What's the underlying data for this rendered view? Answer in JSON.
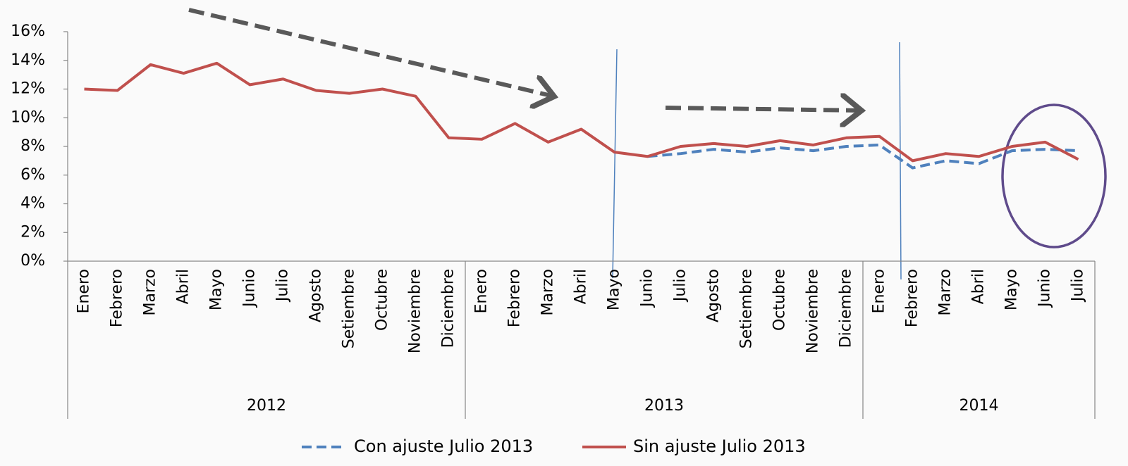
{
  "chart_data": {
    "type": "line",
    "category_groups": [
      {
        "label": "2012",
        "categories": [
          "Enero",
          "Febrero",
          "Marzo",
          "Abril",
          "Mayo",
          "Junio",
          "Julio",
          "Agosto",
          "Setiembre",
          "Octubre",
          "Noviembre",
          "Diciembre"
        ]
      },
      {
        "label": "2013",
        "categories": [
          "Enero",
          "Febrero",
          "Marzo",
          "Abril",
          "Mayo",
          "Junio",
          "Julio",
          "Agosto",
          "Setiembre",
          "Octubre",
          "Noviembre",
          "Diciembre"
        ]
      },
      {
        "label": "2014",
        "categories": [
          "Enero",
          "Febrero",
          "Marzo",
          "Abril",
          "Mayo",
          "Junio",
          "Julio"
        ]
      }
    ],
    "series": [
      {
        "name": "Con ajuste Julio 2013",
        "color": "#4f81bd",
        "dashed": true,
        "values": [
          null,
          null,
          null,
          null,
          null,
          null,
          null,
          null,
          null,
          null,
          null,
          null,
          null,
          null,
          null,
          null,
          null,
          7.3,
          7.5,
          7.8,
          7.6,
          7.9,
          7.7,
          8.0,
          8.1,
          6.5,
          7.0,
          6.8,
          7.7,
          7.8,
          7.7
        ]
      },
      {
        "name": "Sin ajuste Julio 2013",
        "color": "#c0504d",
        "dashed": false,
        "values": [
          12.0,
          11.9,
          13.7,
          13.1,
          13.8,
          12.3,
          12.7,
          11.9,
          11.7,
          12.0,
          11.5,
          8.6,
          8.5,
          9.6,
          8.3,
          9.2,
          7.6,
          7.3,
          8.0,
          8.2,
          8.0,
          8.4,
          8.1,
          8.6,
          8.7,
          7.0,
          7.5,
          7.3,
          8.0,
          8.3,
          7.1
        ]
      }
    ],
    "ylim": [
      0,
      16
    ],
    "yticks": [
      {
        "value": 0,
        "label": "0%"
      },
      {
        "value": 2,
        "label": "2%"
      },
      {
        "value": 4,
        "label": "4%"
      },
      {
        "value": 6,
        "label": "6%"
      },
      {
        "value": 8,
        "label": "8%"
      },
      {
        "value": 10,
        "label": "10%"
      },
      {
        "value": 12,
        "label": "12%"
      },
      {
        "value": 14,
        "label": "14%"
      },
      {
        "value": 16,
        "label": "16%"
      }
    ],
    "legend": "bottom"
  }
}
